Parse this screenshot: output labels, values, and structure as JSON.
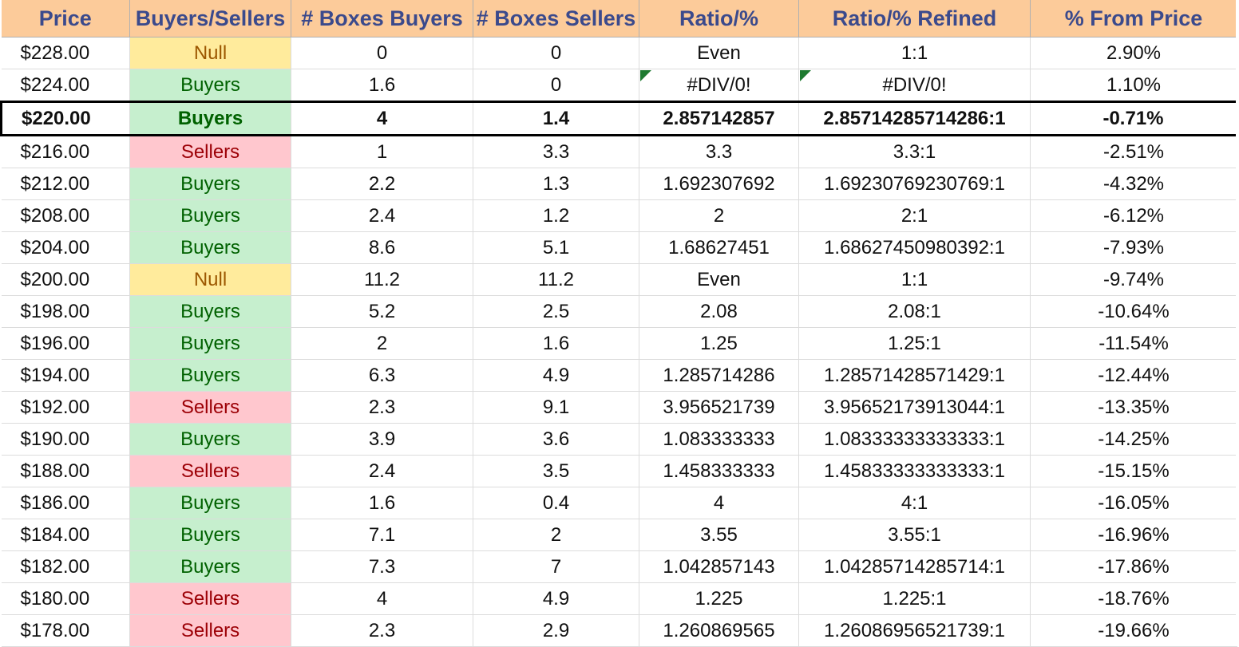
{
  "columns": [
    "Price",
    "Buyers/Sellers",
    "# Boxes Buyers",
    "# Boxes Sellers",
    "Ratio/%",
    "Ratio/% Refined",
    "% From Price"
  ],
  "highlight_row": 2,
  "status_colors": {
    "Buyers": {
      "bg": "#c6efce",
      "fg": "#006100"
    },
    "Sellers": {
      "bg": "#ffc7ce",
      "fg": "#9c0006"
    },
    "Null": {
      "bg": "#ffeb9c",
      "fg": "#9c5700"
    }
  },
  "header_color": "#fccb9a",
  "rows": [
    {
      "price": "$228.00",
      "side": "Null",
      "buyers": "0",
      "sellers": "0",
      "ratio": "Even",
      "refined": "1:1",
      "from_price": "2.90%"
    },
    {
      "price": "$224.00",
      "side": "Buyers",
      "buyers": "1.6",
      "sellers": "0",
      "ratio": "#DIV/0!",
      "refined": "#DIV/0!",
      "from_price": "1.10%"
    },
    {
      "price": "$220.00",
      "side": "Buyers",
      "buyers": "4",
      "sellers": "1.4",
      "ratio": "2.857142857",
      "refined": "2.85714285714286:1",
      "from_price": "-0.71%"
    },
    {
      "price": "$216.00",
      "side": "Sellers",
      "buyers": "1",
      "sellers": "3.3",
      "ratio": "3.3",
      "refined": "3.3:1",
      "from_price": "-2.51%"
    },
    {
      "price": "$212.00",
      "side": "Buyers",
      "buyers": "2.2",
      "sellers": "1.3",
      "ratio": "1.692307692",
      "refined": "1.69230769230769:1",
      "from_price": "-4.32%"
    },
    {
      "price": "$208.00",
      "side": "Buyers",
      "buyers": "2.4",
      "sellers": "1.2",
      "ratio": "2",
      "refined": "2:1",
      "from_price": "-6.12%"
    },
    {
      "price": "$204.00",
      "side": "Buyers",
      "buyers": "8.6",
      "sellers": "5.1",
      "ratio": "1.68627451",
      "refined": "1.68627450980392:1",
      "from_price": "-7.93%"
    },
    {
      "price": "$200.00",
      "side": "Null",
      "buyers": "11.2",
      "sellers": "11.2",
      "ratio": "Even",
      "refined": "1:1",
      "from_price": "-9.74%"
    },
    {
      "price": "$198.00",
      "side": "Buyers",
      "buyers": "5.2",
      "sellers": "2.5",
      "ratio": "2.08",
      "refined": "2.08:1",
      "from_price": "-10.64%"
    },
    {
      "price": "$196.00",
      "side": "Buyers",
      "buyers": "2",
      "sellers": "1.6",
      "ratio": "1.25",
      "refined": "1.25:1",
      "from_price": "-11.54%"
    },
    {
      "price": "$194.00",
      "side": "Buyers",
      "buyers": "6.3",
      "sellers": "4.9",
      "ratio": "1.285714286",
      "refined": "1.28571428571429:1",
      "from_price": "-12.44%"
    },
    {
      "price": "$192.00",
      "side": "Sellers",
      "buyers": "2.3",
      "sellers": "9.1",
      "ratio": "3.956521739",
      "refined": "3.95652173913044:1",
      "from_price": "-13.35%"
    },
    {
      "price": "$190.00",
      "side": "Buyers",
      "buyers": "3.9",
      "sellers": "3.6",
      "ratio": "1.083333333",
      "refined": "1.08333333333333:1",
      "from_price": "-14.25%"
    },
    {
      "price": "$188.00",
      "side": "Sellers",
      "buyers": "2.4",
      "sellers": "3.5",
      "ratio": "1.458333333",
      "refined": "1.45833333333333:1",
      "from_price": "-15.15%"
    },
    {
      "price": "$186.00",
      "side": "Buyers",
      "buyers": "1.6",
      "sellers": "0.4",
      "ratio": "4",
      "refined": "4:1",
      "from_price": "-16.05%"
    },
    {
      "price": "$184.00",
      "side": "Buyers",
      "buyers": "7.1",
      "sellers": "2",
      "ratio": "3.55",
      "refined": "3.55:1",
      "from_price": "-16.96%"
    },
    {
      "price": "$182.00",
      "side": "Buyers",
      "buyers": "7.3",
      "sellers": "7",
      "ratio": "1.042857143",
      "refined": "1.04285714285714:1",
      "from_price": "-17.86%"
    },
    {
      "price": "$180.00",
      "side": "Sellers",
      "buyers": "4",
      "sellers": "4.9",
      "ratio": "1.225",
      "refined": "1.225:1",
      "from_price": "-18.76%"
    },
    {
      "price": "$178.00",
      "side": "Sellers",
      "buyers": "2.3",
      "sellers": "2.9",
      "ratio": "1.260869565",
      "refined": "1.26086956521739:1",
      "from_price": "-19.66%"
    }
  ]
}
